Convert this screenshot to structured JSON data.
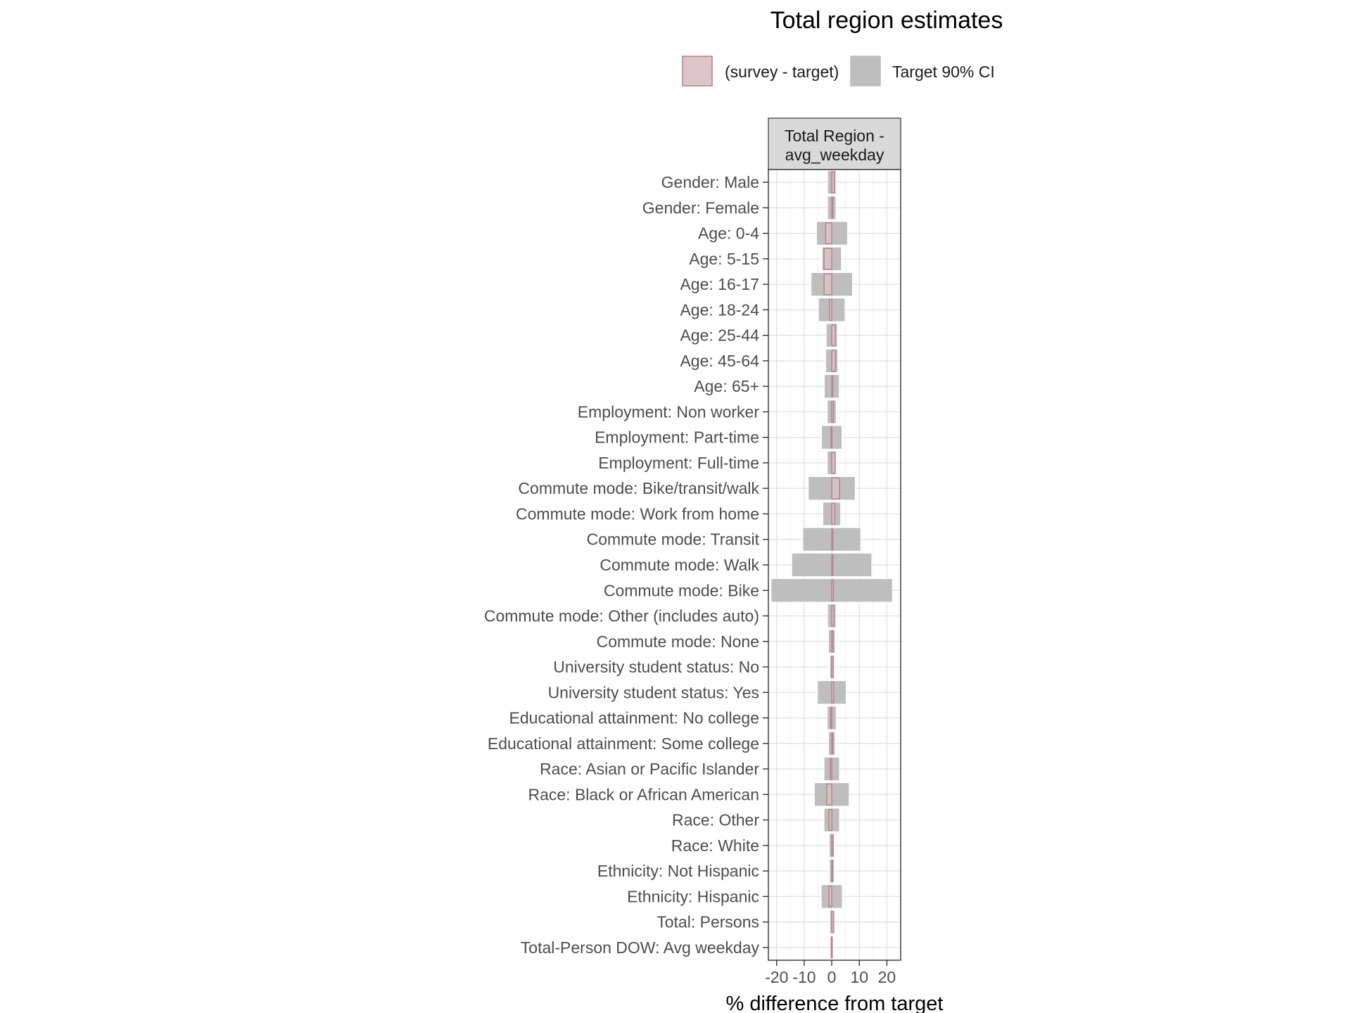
{
  "chart_data": {
    "type": "bar",
    "title": "Total region estimates",
    "facet_label": [
      "Total Region -",
      "avg_weekday"
    ],
    "xlabel": "% difference from target",
    "ylabel": "",
    "xlim": [
      -23,
      25
    ],
    "xticks": [
      -20,
      -10,
      0,
      10,
      20
    ],
    "xtick_labels": [
      "-20",
      "-10",
      "0",
      "10",
      "20"
    ],
    "legend": {
      "position": "top",
      "entries": [
        {
          "label": "(survey - target)",
          "fill": "#dcc6c9",
          "stroke": "#b87f86"
        },
        {
          "label": "Target 90% CI",
          "fill": "#bebebe",
          "stroke": "#bebebe"
        }
      ]
    },
    "categories": [
      "Gender: Male",
      "Gender: Female",
      "Age: 0-4",
      "Age: 5-15",
      "Age: 16-17",
      "Age: 18-24",
      "Age: 25-44",
      "Age: 45-64",
      "Age: 65+",
      "Employment: Non worker",
      "Employment: Part-time",
      "Employment: Full-time",
      "Commute mode: Bike/transit/walk",
      "Commute mode: Work from home",
      "Commute mode: Transit",
      "Commute mode: Walk",
      "Commute mode: Bike",
      "Commute mode: Other (includes auto)",
      "Commute mode: None",
      "University student status: No",
      "University student status: Yes",
      "Educational attainment: No college",
      "Educational attainment: Some college",
      "Race: Asian or Pacific Islander",
      "Race: Black or African American",
      "Race: Other",
      "Race: White",
      "Ethnicity: Not Hispanic",
      "Ethnicity: Hispanic",
      "Total: Persons",
      "Total-Person DOW: Avg weekday"
    ],
    "series": [
      {
        "name": "(survey - target)",
        "values": [
          1.0,
          0.4,
          -2.2,
          -2.8,
          -2.8,
          -0.8,
          1.3,
          1.3,
          0.3,
          0.6,
          -0.3,
          1.2,
          2.8,
          1.1,
          0.2,
          0.3,
          0.6,
          0.8,
          0.5,
          0.6,
          0.7,
          -0.4,
          0.3,
          -0.5,
          -1.8,
          -1.0,
          0.5,
          0.3,
          -1.0,
          0.7,
          -0.2
        ]
      },
      {
        "name": "Target 90% CI",
        "ci": [
          [
            -1.5,
            1.5
          ],
          [
            -1.5,
            1.5
          ],
          [
            -5.5,
            5.7
          ],
          [
            -3.5,
            3.5
          ],
          [
            -7.5,
            7.5
          ],
          [
            -4.8,
            4.8
          ],
          [
            -2.0,
            2.0
          ],
          [
            -2.2,
            2.2
          ],
          [
            -2.7,
            2.7
          ],
          [
            -1.6,
            1.6
          ],
          [
            -3.7,
            3.7
          ],
          [
            -1.6,
            1.6
          ],
          [
            -8.5,
            8.5
          ],
          [
            -3.2,
            3.2
          ],
          [
            -10.5,
            10.5
          ],
          [
            -14.5,
            14.5
          ],
          [
            -22.0,
            22.0
          ],
          [
            -1.5,
            1.5
          ],
          [
            -1.2,
            1.2
          ],
          [
            -0.7,
            0.7
          ],
          [
            -5.2,
            5.2
          ],
          [
            -1.6,
            1.6
          ],
          [
            -1.2,
            1.2
          ],
          [
            -2.8,
            2.8
          ],
          [
            -6.3,
            6.3
          ],
          [
            -2.8,
            2.8
          ],
          [
            -0.9,
            0.9
          ],
          [
            -0.8,
            0.8
          ],
          [
            -3.8,
            3.8
          ],
          [
            -0.7,
            0.7
          ],
          [
            -0.3,
            0.3
          ]
        ]
      }
    ]
  }
}
